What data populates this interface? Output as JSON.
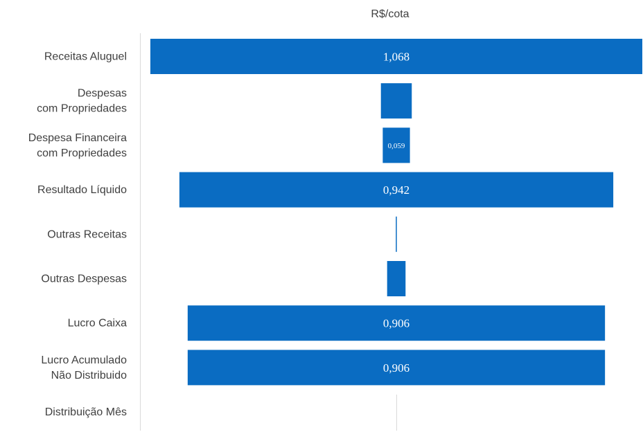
{
  "chart_data": {
    "type": "bar",
    "orientation": "horizontal",
    "title": "R$/cota",
    "categories": [
      [
        "Receitas Aluguel"
      ],
      [
        "Despesas",
        "com Propriedades"
      ],
      [
        "Despesa Financeira",
        "com Propriedades"
      ],
      [
        "Resultado Líquido"
      ],
      [
        "Outras Receitas"
      ],
      [
        "Outras Despesas"
      ],
      [
        "Lucro Caixa"
      ],
      [
        "Lucro Acumulado",
        "Não Distribuido"
      ],
      [
        "Distribuição Mês"
      ]
    ],
    "values": [
      1.068,
      0.067,
      0.059,
      0.942,
      0.002,
      0.04,
      0.906,
      0.906,
      0
    ],
    "labels": [
      "1,068",
      "",
      "0,059",
      "0,942",
      "",
      "",
      "0,906",
      "0,906",
      ""
    ],
    "alignment": "centered",
    "bar_color": "#0A6CC2"
  }
}
